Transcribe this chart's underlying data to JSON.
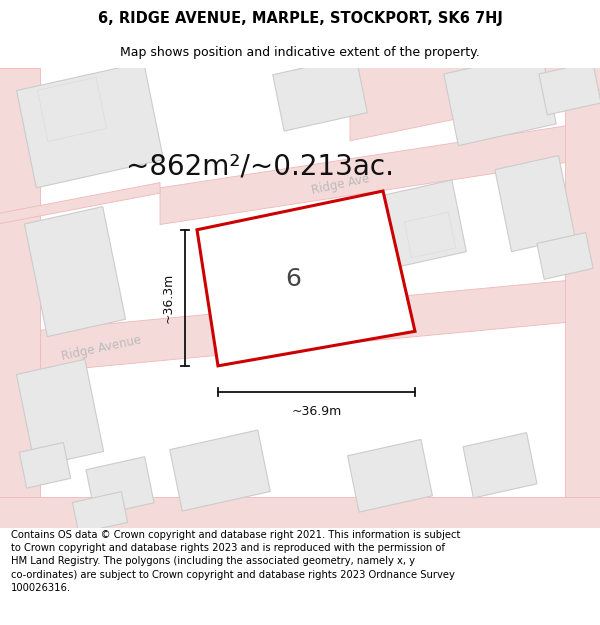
{
  "title": "6, RIDGE AVENUE, MARPLE, STOCKPORT, SK6 7HJ",
  "subtitle": "Map shows position and indicative extent of the property.",
  "area_text": "~862m²/~0.213ac.",
  "width_label": "~36.9m",
  "height_label": "~36.3m",
  "number_label": "6",
  "footer": "Contains OS data © Crown copyright and database right 2021. This information is subject to Crown copyright and database rights 2023 and is reproduced with the permission of HM Land Registry. The polygons (including the associated geometry, namely x, y co-ordinates) are subject to Crown copyright and database rights 2023 Ordnance Survey 100026316.",
  "map_bg": "#f9f7f6",
  "road_fill": "#f5dada",
  "road_edge": "#f0b8b8",
  "building_fill": "#e8e8e8",
  "building_edge": "#cccccc",
  "plot_edge": "#cc0000",
  "dim_color": "#111111",
  "road_label_color": "#bbbbbb",
  "title_fontsize": 10.5,
  "subtitle_fontsize": 9,
  "area_fontsize": 20,
  "number_fontsize": 18,
  "label_fontsize": 9,
  "footer_fontsize": 7.2
}
